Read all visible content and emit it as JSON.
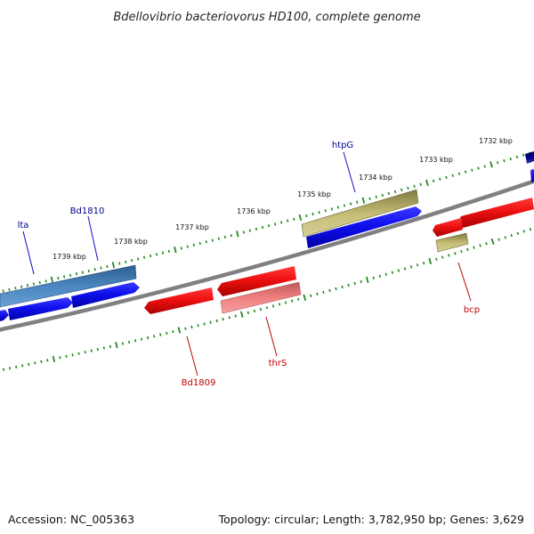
{
  "title": "Bdellovibrio bacteriovorus HD100, complete genome",
  "accession_text": "Accession: NC_005363",
  "summary_text": "Topology: circular; Length: 3,782,950 bp; Genes: 3,629",
  "colors": {
    "backbone": "#808080",
    "ticks": "#1f8a1f",
    "forward_gene": "#1010ee",
    "forward_gene_alt": "#4a86c0",
    "reverse_gene": "#ee1010",
    "reverse_gene_alt": "#f08080",
    "olive_gene": "#c4bc74",
    "forward_label": "#00008b",
    "reverse_label": "#c00000"
  },
  "ruler": {
    "tick_labels": [
      "1732 kbp",
      "1733 kbp",
      "1734 kbp",
      "1735 kbp",
      "1736 kbp",
      "1737 kbp",
      "1738 kbp",
      "1739 kbp"
    ]
  },
  "genes": {
    "forward": [
      {
        "label": "htpG",
        "color": "olive"
      },
      {
        "label": "Bd1810",
        "color": "steel"
      },
      {
        "label": "lta",
        "color": "steel"
      }
    ],
    "reverse": [
      {
        "label": "bcp",
        "color": "olive"
      },
      {
        "label": "thrS",
        "color": "pink"
      },
      {
        "label": "Bd1809",
        "color": "red"
      }
    ]
  }
}
